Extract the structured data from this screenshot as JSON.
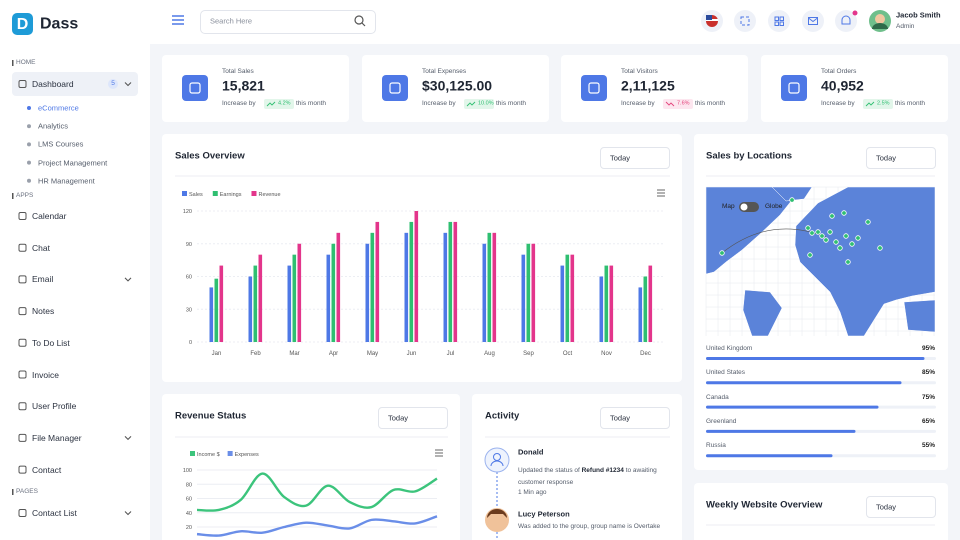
{
  "sidebar": {
    "brand": "Dass",
    "sections": [
      {
        "title": "HOME",
        "items": [
          {
            "label": "Dashboard",
            "badge": "5",
            "children": [
              "eCommerce",
              "Analytics",
              "LMS Courses",
              "Project Management",
              "HR Management"
            ]
          }
        ]
      },
      {
        "title": "APPS",
        "items": [
          {
            "label": "Calendar"
          },
          {
            "label": "Chat"
          },
          {
            "label": "Email"
          },
          {
            "label": "Notes"
          },
          {
            "label": "To Do List"
          },
          {
            "label": "Invoice"
          },
          {
            "label": "User Profile"
          },
          {
            "label": "File Manager"
          },
          {
            "label": "Contact"
          }
        ]
      },
      {
        "title": "PAGES",
        "items": [
          {
            "label": "Contact List"
          }
        ]
      }
    ]
  },
  "header": {
    "search_placeholder": "Search Here",
    "user_name": "Jacob Smith",
    "user_role": "Admin"
  },
  "stats": [
    {
      "label": "Total Sales",
      "value": "15,821",
      "prefix": "Increase by",
      "change": "4.2%",
      "trend": "up",
      "suffix": "this month"
    },
    {
      "label": "Total Expenses",
      "value": "$30,125.00",
      "prefix": "Increase by",
      "change": "10.0%",
      "trend": "up",
      "suffix": "this month"
    },
    {
      "label": "Total Visitors",
      "value": "2,11,125",
      "prefix": "Increase by",
      "change": "7.6%",
      "trend": "down",
      "suffix": "this month"
    },
    {
      "label": "Total Orders",
      "value": "40,952",
      "prefix": "Increase by",
      "change": "2.5%",
      "trend": "up",
      "suffix": "this month"
    }
  ],
  "locations": {
    "title": "Sales by Locations",
    "filter": "Today",
    "toggle": [
      "Map",
      "Globe"
    ],
    "names": [
      "United Kingdom",
      "United States",
      "Canada",
      "Greenland",
      "Russia"
    ],
    "values": [
      95,
      85,
      75,
      65,
      55
    ],
    "value_labels": [
      "95%",
      "85%",
      "75%",
      "65%",
      "55%"
    ],
    "color": "#4e78e6"
  },
  "activity": {
    "title": "Activity",
    "filter": "Today",
    "items": [
      {
        "name": "Donald",
        "text_before": "Updated the status of",
        "highlight": "Refund #1234",
        "text_after": "to awaiting customer response",
        "time": "1 Min ago"
      },
      {
        "name": "Lucy Peterson",
        "text": "Was added to the group, group name is Overtake"
      }
    ]
  },
  "weekly": {
    "title": "Weekly Website Overview",
    "filter": "Today"
  },
  "chart_data": [
    {
      "type": "bar",
      "title": "Sales Overview",
      "filter": "Today",
      "categories": [
        "Jan",
        "Feb",
        "Mar",
        "Apr",
        "May",
        "Jun",
        "Jul",
        "Aug",
        "Sep",
        "Oct",
        "Nov",
        "Dec"
      ],
      "series": [
        {
          "name": "Sales",
          "color": "#4e78e6",
          "values": [
            50,
            60,
            70,
            80,
            90,
            100,
            100,
            90,
            80,
            70,
            60,
            50
          ]
        },
        {
          "name": "Earnings",
          "color": "#2fbf71",
          "values": [
            58,
            70,
            80,
            90,
            100,
            110,
            110,
            100,
            90,
            80,
            70,
            60
          ]
        },
        {
          "name": "Revenue",
          "color": "#e3358b",
          "values": [
            70,
            80,
            90,
            100,
            110,
            120,
            110,
            100,
            90,
            80,
            70,
            70
          ]
        }
      ],
      "ylim": [
        0,
        120
      ],
      "yticks": [
        0,
        30,
        60,
        90,
        120
      ],
      "grid": true
    },
    {
      "type": "line",
      "title": "Revenue Status",
      "filter": "Today",
      "series": [
        {
          "name": "Income $",
          "color": "#3cc47c",
          "values": [
            44,
            44,
            58,
            95,
            62,
            50,
            78,
            55,
            48,
            72,
            70,
            88
          ]
        },
        {
          "name": "Expenses",
          "color": "#6a8ee8",
          "values": [
            10,
            8,
            14,
            12,
            20,
            26,
            22,
            18,
            30,
            28,
            25,
            35
          ]
        }
      ],
      "ylim": [
        0,
        100
      ],
      "yticks": [
        20,
        40,
        60,
        80,
        100
      ],
      "grid": true
    }
  ]
}
